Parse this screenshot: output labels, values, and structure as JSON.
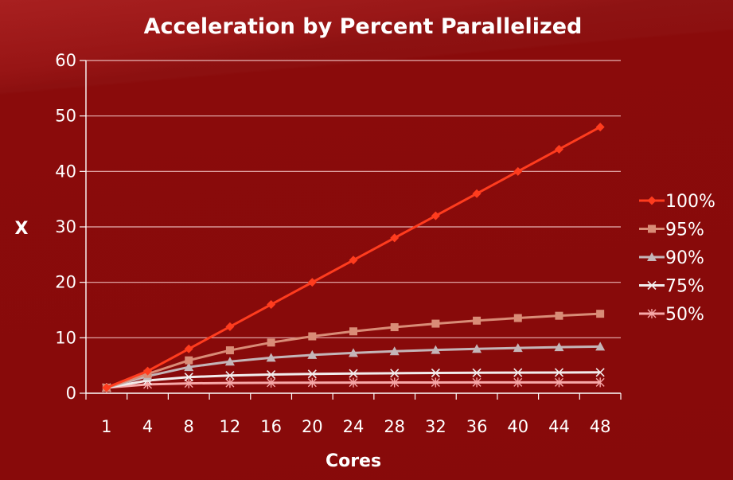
{
  "chart_data": {
    "type": "line",
    "title": "Acceleration by Percent Parallelized",
    "xlabel": "Cores",
    "ylabel": "X",
    "x": [
      1,
      4,
      8,
      12,
      16,
      20,
      24,
      28,
      32,
      36,
      40,
      44,
      48
    ],
    "x_tick_labels": [
      "1",
      "4",
      "8",
      "12",
      "16",
      "20",
      "24",
      "28",
      "32",
      "36",
      "40",
      "44",
      "48"
    ],
    "ylim": [
      0,
      60
    ],
    "y_ticks": [
      0,
      10,
      20,
      30,
      40,
      50,
      60
    ],
    "grid": true,
    "legend_position": "right",
    "series": [
      {
        "name": "100%",
        "color": "#ff3c1e",
        "marker": "diamond",
        "values": [
          1,
          4,
          8,
          12,
          16,
          20,
          24,
          28,
          32,
          36,
          40,
          44,
          48
        ]
      },
      {
        "name": "95%",
        "color": "#d98c77",
        "marker": "square",
        "values": [
          1,
          3.48,
          5.93,
          7.74,
          9.14,
          10.26,
          11.16,
          11.91,
          12.55,
          13.09,
          13.56,
          13.97,
          14.33
        ]
      },
      {
        "name": "90%",
        "color": "#c4b5b8",
        "marker": "triangle",
        "values": [
          1,
          3.08,
          4.71,
          5.71,
          6.4,
          6.9,
          7.27,
          7.57,
          7.8,
          8,
          8.16,
          8.3,
          8.42
        ]
      },
      {
        "name": "75%",
        "color": "#f2ecec",
        "marker": "x",
        "values": [
          1,
          2.29,
          2.91,
          3.2,
          3.37,
          3.48,
          3.56,
          3.61,
          3.66,
          3.69,
          3.72,
          3.74,
          3.76
        ]
      },
      {
        "name": "50%",
        "color": "#f7a8a8",
        "marker": "asterisk",
        "values": [
          1,
          1.6,
          1.78,
          1.85,
          1.88,
          1.9,
          1.92,
          1.93,
          1.94,
          1.95,
          1.95,
          1.96,
          1.96
        ]
      }
    ]
  }
}
